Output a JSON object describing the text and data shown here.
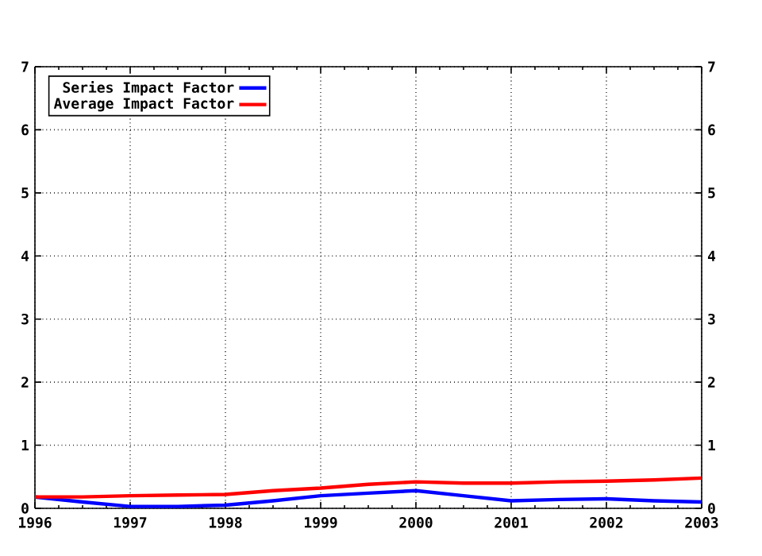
{
  "chart_data": {
    "type": "line",
    "x": [
      1996,
      1996.5,
      1997,
      1997.5,
      1998,
      1998.5,
      1999,
      1999.5,
      2000,
      2000.5,
      2001,
      2001.5,
      2002,
      2002.5,
      2003
    ],
    "series": [
      {
        "name": "Series Impact Factor",
        "color": "#0000ff",
        "values": [
          0.18,
          0.1,
          0.03,
          0.03,
          0.05,
          0.12,
          0.2,
          0.24,
          0.28,
          0.2,
          0.12,
          0.14,
          0.15,
          0.12,
          0.1
        ]
      },
      {
        "name": "Average Impact Factor",
        "color": "#ff0000",
        "values": [
          0.18,
          0.18,
          0.2,
          0.21,
          0.22,
          0.28,
          0.32,
          0.38,
          0.42,
          0.4,
          0.4,
          0.42,
          0.43,
          0.45,
          0.48
        ]
      }
    ],
    "xlim": [
      1996,
      2003
    ],
    "xticks": [
      1996,
      1997,
      1998,
      1999,
      2000,
      2001,
      2002,
      2003
    ],
    "ylim": [
      0,
      7
    ],
    "yticks": [
      0,
      1,
      2,
      3,
      4,
      5,
      6,
      7
    ],
    "y2lim": [
      0,
      7
    ],
    "y2ticks": [
      0,
      1,
      2,
      3,
      4,
      5,
      6,
      7
    ],
    "grid": true,
    "legend": "top left",
    "marker": "none",
    "line_style": "solid"
  }
}
